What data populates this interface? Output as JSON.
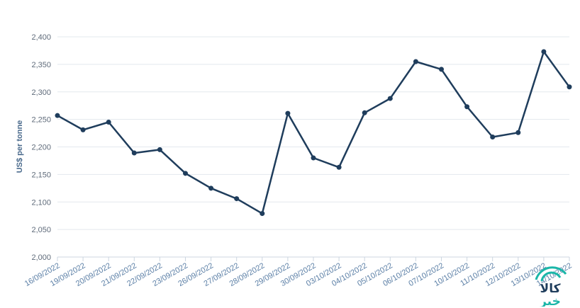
{
  "chart_data": {
    "type": "line",
    "ylabel": "US$ per tonne",
    "xlabel": "",
    "ylim": [
      2000,
      2400
    ],
    "yticks": [
      "2,000",
      "2,050",
      "2,100",
      "2,150",
      "2,200",
      "2,250",
      "2,300",
      "2,350",
      "2,400"
    ],
    "ytick_values": [
      2000,
      2050,
      2100,
      2150,
      2200,
      2250,
      2300,
      2350,
      2400
    ],
    "grid": true,
    "categories": [
      "16/09/2022",
      "19/09/2022",
      "20/09/2022",
      "21/09/2022",
      "22/09/2022",
      "23/09/2022",
      "26/09/2022",
      "27/09/2022",
      "28/09/2022",
      "29/09/2022",
      "30/09/2022",
      "03/10/2022",
      "04/10/2022",
      "05/10/2022",
      "06/10/2022",
      "07/10/2022",
      "10/10/2022",
      "11/10/2022",
      "12/10/2022",
      "13/10/2022",
      "14/10/2022"
    ],
    "series": [
      {
        "values": [
          2257,
          2231,
          2245,
          2189,
          2195,
          2152,
          2125,
          2106,
          2079,
          2261,
          2180,
          2163,
          2262,
          2288,
          2355,
          2341,
          2273,
          2218,
          2226,
          2373,
          2309
        ]
      }
    ],
    "colors": {
      "line": "#1f3d5c",
      "grid": "#e3e8ee"
    }
  },
  "watermark": {
    "logo_text_top": "کالا",
    "logo_text_bottom": "خبر",
    "color": "#1ab6a8"
  }
}
